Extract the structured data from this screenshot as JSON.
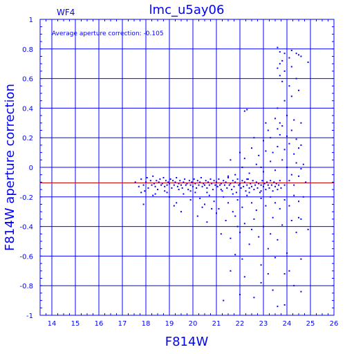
{
  "chart_data": {
    "type": "scatter",
    "title": "lmc_u5ay06",
    "chip_label": "WF4",
    "annotation": "Average aperture correction: -0.105",
    "xlabel": "F814W",
    "ylabel": "F814W aperture correction",
    "xlim": [
      13.5,
      26
    ],
    "ylim": [
      -1,
      1
    ],
    "x_ticks": [
      "14",
      "15",
      "16",
      "17",
      "18",
      "19",
      "20",
      "21",
      "22",
      "23",
      "24",
      "25",
      "26"
    ],
    "y_ticks": [
      "1",
      "0.8",
      "0.6",
      "0.4",
      "0.2",
      "0",
      "-0.2",
      "-0.4",
      "-0.6",
      "-0.8",
      "-1"
    ],
    "reference_line": {
      "y": -0.105,
      "color": "#cc0000"
    },
    "grid": true,
    "colors": {
      "points": "#0000ff",
      "axes": "#0000ff",
      "reference": "#cc0000"
    },
    "points": [
      [
        17.55,
        -0.1
      ],
      [
        17.7,
        -0.13
      ],
      [
        17.8,
        -0.08
      ],
      [
        17.9,
        -0.12
      ],
      [
        17.95,
        -0.16
      ],
      [
        18.0,
        -0.1
      ],
      [
        18.05,
        -0.07
      ],
      [
        18.1,
        -0.14
      ],
      [
        18.2,
        -0.09
      ],
      [
        18.25,
        -0.12
      ],
      [
        18.3,
        -0.06
      ],
      [
        18.35,
        -0.11
      ],
      [
        18.4,
        -0.13
      ],
      [
        18.45,
        -0.09
      ],
      [
        18.5,
        -0.15
      ],
      [
        18.55,
        -0.1
      ],
      [
        18.6,
        -0.08
      ],
      [
        18.65,
        -0.12
      ],
      [
        18.7,
        -0.11
      ],
      [
        18.75,
        -0.07
      ],
      [
        18.8,
        -0.13
      ],
      [
        18.85,
        -0.09
      ],
      [
        18.9,
        -0.12
      ],
      [
        18.95,
        -0.1
      ],
      [
        19.0,
        -0.11
      ],
      [
        19.05,
        -0.08
      ],
      [
        19.1,
        -0.14
      ],
      [
        19.15,
        -0.09
      ],
      [
        19.2,
        -0.12
      ],
      [
        19.25,
        -0.1
      ],
      [
        19.3,
        -0.07
      ],
      [
        19.35,
        -0.13
      ],
      [
        19.4,
        -0.11
      ],
      [
        19.45,
        -0.09
      ],
      [
        19.5,
        -0.12
      ],
      [
        19.55,
        -0.14
      ],
      [
        19.6,
        -0.1
      ],
      [
        19.65,
        -0.08
      ],
      [
        19.7,
        -0.12
      ],
      [
        19.75,
        -0.11
      ],
      [
        19.8,
        -0.15
      ],
      [
        19.85,
        -0.09
      ],
      [
        19.9,
        -0.12
      ],
      [
        19.95,
        -0.1
      ],
      [
        20.0,
        -0.13
      ],
      [
        20.05,
        -0.08
      ],
      [
        20.1,
        -0.11
      ],
      [
        20.15,
        -0.14
      ],
      [
        20.2,
        -0.09
      ],
      [
        20.25,
        -0.12
      ],
      [
        20.3,
        -0.1
      ],
      [
        20.35,
        -0.07
      ],
      [
        20.4,
        -0.13
      ],
      [
        20.45,
        -0.11
      ],
      [
        20.5,
        -0.12
      ],
      [
        20.55,
        -0.09
      ],
      [
        20.6,
        -0.14
      ],
      [
        20.65,
        -0.1
      ],
      [
        20.7,
        -0.12
      ],
      [
        20.75,
        -0.08
      ],
      [
        20.8,
        -0.11
      ],
      [
        20.85,
        -0.15
      ],
      [
        20.9,
        -0.09
      ],
      [
        20.95,
        -0.12
      ],
      [
        21.0,
        -0.1
      ],
      [
        21.05,
        -0.13
      ],
      [
        21.1,
        -0.08
      ],
      [
        21.15,
        -0.12
      ],
      [
        21.2,
        -0.11
      ],
      [
        21.25,
        -0.16
      ],
      [
        21.3,
        -0.09
      ],
      [
        21.35,
        -0.12
      ],
      [
        21.4,
        -0.1
      ],
      [
        21.45,
        -0.14
      ],
      [
        21.5,
        -0.07
      ],
      [
        21.55,
        -0.12
      ],
      [
        21.6,
        -0.11
      ],
      [
        21.65,
        -0.15
      ],
      [
        21.7,
        -0.09
      ],
      [
        21.75,
        -0.13
      ],
      [
        21.8,
        -0.1
      ],
      [
        21.85,
        -0.17
      ],
      [
        21.9,
        -0.08
      ],
      [
        21.95,
        -0.12
      ],
      [
        22.0,
        -0.11
      ],
      [
        22.05,
        -0.14
      ],
      [
        22.1,
        -0.09
      ],
      [
        22.15,
        -0.13
      ],
      [
        22.2,
        -0.1
      ],
      [
        22.25,
        -0.16
      ],
      [
        22.3,
        -0.12
      ],
      [
        22.35,
        -0.08
      ],
      [
        22.4,
        -0.14
      ],
      [
        22.45,
        -0.11
      ],
      [
        22.5,
        -0.13
      ],
      [
        22.55,
        -0.09
      ],
      [
        22.6,
        -0.15
      ],
      [
        22.65,
        -0.12
      ],
      [
        22.7,
        -0.1
      ],
      [
        22.75,
        -0.14
      ],
      [
        22.8,
        -0.11
      ],
      [
        22.85,
        -0.17
      ],
      [
        22.9,
        -0.12
      ],
      [
        22.95,
        -0.09
      ],
      [
        23.0,
        -0.13
      ],
      [
        23.05,
        -0.11
      ],
      [
        23.1,
        -0.15
      ],
      [
        23.15,
        -0.1
      ],
      [
        23.2,
        -0.12
      ],
      [
        23.25,
        -0.14
      ],
      [
        23.3,
        -0.09
      ],
      [
        23.35,
        -0.12
      ],
      [
        23.4,
        -0.16
      ],
      [
        23.45,
        -0.1
      ],
      [
        23.5,
        -0.13
      ],
      [
        23.55,
        -0.11
      ],
      [
        23.6,
        -0.15
      ],
      [
        23.65,
        -0.12
      ],
      [
        23.7,
        -0.09
      ],
      [
        23.75,
        -0.14
      ],
      [
        17.9,
        -0.25
      ],
      [
        18.3,
        -0.19
      ],
      [
        18.8,
        -0.16
      ],
      [
        19.0,
        -0.2
      ],
      [
        19.3,
        -0.24
      ],
      [
        19.6,
        -0.18
      ],
      [
        19.9,
        -0.22
      ],
      [
        20.1,
        -0.17
      ],
      [
        20.3,
        -0.21
      ],
      [
        20.5,
        -0.25
      ],
      [
        20.7,
        -0.19
      ],
      [
        20.9,
        -0.23
      ],
      [
        21.1,
        -0.28
      ],
      [
        21.3,
        -0.2
      ],
      [
        21.5,
        -0.24
      ],
      [
        21.7,
        -0.3
      ],
      [
        21.9,
        -0.22
      ],
      [
        22.1,
        -0.27
      ],
      [
        22.3,
        -0.19
      ],
      [
        22.5,
        -0.24
      ],
      [
        22.7,
        -0.29
      ],
      [
        22.9,
        -0.21
      ],
      [
        23.1,
        -0.26
      ],
      [
        23.3,
        -0.2
      ],
      [
        23.5,
        -0.24
      ],
      [
        23.7,
        -0.28
      ],
      [
        23.9,
        -0.22
      ],
      [
        24.1,
        -0.26
      ],
      [
        24.3,
        -0.19
      ],
      [
        24.5,
        -0.23
      ],
      [
        19.5,
        -0.3
      ],
      [
        20.2,
        -0.33
      ],
      [
        20.6,
        -0.37
      ],
      [
        21.0,
        -0.31
      ],
      [
        21.4,
        -0.36
      ],
      [
        21.8,
        -0.33
      ],
      [
        22.2,
        -0.38
      ],
      [
        22.6,
        -0.35
      ],
      [
        23.0,
        -0.4
      ],
      [
        23.4,
        -0.34
      ],
      [
        23.8,
        -0.39
      ],
      [
        24.2,
        -0.36
      ],
      [
        24.5,
        -0.34
      ],
      [
        21.2,
        -0.45
      ],
      [
        21.6,
        -0.48
      ],
      [
        22.0,
        -0.44
      ],
      [
        22.4,
        -0.52
      ],
      [
        22.8,
        -0.47
      ],
      [
        23.2,
        -0.55
      ],
      [
        23.6,
        -0.49
      ],
      [
        24.0,
        -0.58
      ],
      [
        24.4,
        -0.44
      ],
      [
        22.1,
        -0.62
      ],
      [
        22.9,
        -0.66
      ],
      [
        23.5,
        -0.61
      ],
      [
        24.1,
        -0.7
      ],
      [
        24.6,
        -0.62
      ],
      [
        21.8,
        -0.59
      ],
      [
        22.2,
        -0.74
      ],
      [
        22.9,
        -0.78
      ],
      [
        23.4,
        -0.83
      ],
      [
        23.9,
        -0.72
      ],
      [
        24.3,
        -0.8
      ],
      [
        22.0,
        -0.86
      ],
      [
        21.3,
        -0.9
      ],
      [
        22.6,
        -0.88
      ],
      [
        23.6,
        -0.94
      ],
      [
        23.9,
        -0.93
      ],
      [
        24.6,
        -0.84
      ],
      [
        23.2,
        -0.72
      ],
      [
        21.6,
        -0.7
      ],
      [
        21.8,
        -0.05
      ],
      [
        22.1,
        0.0
      ],
      [
        22.4,
        -0.04
      ],
      [
        22.7,
        0.02
      ],
      [
        23.0,
        -0.03
      ],
      [
        23.3,
        0.04
      ],
      [
        23.5,
        -0.02
      ],
      [
        23.8,
        0.05
      ],
      [
        24.0,
        0.0
      ],
      [
        24.2,
        -0.05
      ],
      [
        24.4,
        0.03
      ],
      [
        24.6,
        -0.01
      ],
      [
        22.2,
        0.06
      ],
      [
        22.8,
        0.08
      ],
      [
        23.1,
        0.11
      ],
      [
        23.4,
        0.1
      ],
      [
        23.6,
        0.14
      ],
      [
        23.9,
        0.12
      ],
      [
        24.1,
        0.16
      ],
      [
        24.3,
        0.09
      ],
      [
        24.5,
        0.13
      ],
      [
        21.6,
        0.05
      ],
      [
        22.0,
        0.1
      ],
      [
        22.5,
        0.13
      ],
      [
        23.0,
        0.18
      ],
      [
        23.3,
        0.2
      ],
      [
        23.7,
        0.22
      ],
      [
        24.0,
        0.21
      ],
      [
        24.2,
        0.25
      ],
      [
        24.4,
        0.19
      ],
      [
        24.6,
        0.15
      ],
      [
        23.1,
        0.3
      ],
      [
        23.5,
        0.33
      ],
      [
        23.8,
        0.28
      ],
      [
        24.0,
        0.35
      ],
      [
        24.3,
        0.32
      ],
      [
        24.6,
        0.3
      ],
      [
        22.2,
        0.38
      ],
      [
        22.3,
        0.39
      ],
      [
        23.6,
        0.4
      ],
      [
        23.9,
        0.45
      ],
      [
        24.2,
        0.48
      ],
      [
        24.5,
        0.52
      ],
      [
        24.1,
        0.55
      ],
      [
        23.8,
        0.58
      ],
      [
        24.4,
        0.6
      ],
      [
        23.7,
        0.62
      ],
      [
        23.9,
        0.65
      ],
      [
        24.2,
        0.68
      ],
      [
        23.6,
        0.67
      ],
      [
        23.7,
        0.7
      ],
      [
        23.8,
        0.72
      ],
      [
        24.1,
        0.74
      ],
      [
        24.4,
        0.77
      ],
      [
        23.9,
        0.77
      ],
      [
        24.6,
        0.75
      ],
      [
        24.9,
        0.71
      ],
      [
        23.6,
        0.81
      ],
      [
        24.2,
        0.79
      ],
      [
        24.5,
        0.76
      ],
      [
        23.7,
        0.78
      ],
      [
        23.2,
        0.25
      ],
      [
        22.6,
        0.2
      ],
      [
        24.7,
        0.02
      ],
      [
        24.8,
        -0.1
      ],
      [
        24.7,
        -0.2
      ],
      [
        24.6,
        -0.35
      ],
      [
        24.9,
        -0.42
      ],
      [
        24.3,
        -0.12
      ],
      [
        24.5,
        -0.06
      ],
      [
        24.1,
        -0.09
      ],
      [
        23.9,
        -0.12
      ],
      [
        22.4,
        -0.17
      ],
      [
        22.9,
        -0.16
      ],
      [
        21.7,
        -0.18
      ],
      [
        21.2,
        -0.15
      ],
      [
        20.6,
        -0.17
      ],
      [
        19.9,
        -0.16
      ],
      [
        19.4,
        -0.15
      ],
      [
        18.9,
        -0.17
      ],
      [
        18.4,
        -0.18
      ],
      [
        17.8,
        -0.17
      ],
      [
        23.3,
        -0.45
      ],
      [
        22.5,
        -0.42
      ],
      [
        21.9,
        -0.4
      ],
      [
        20.8,
        -0.28
      ],
      [
        20.4,
        -0.27
      ],
      [
        19.2,
        -0.26
      ],
      [
        23.7,
        0.3
      ],
      [
        23.6,
        0.26
      ],
      [
        22.9,
        0.0
      ],
      [
        22.3,
        -0.08
      ],
      [
        21.5,
        -0.06
      ]
    ]
  }
}
